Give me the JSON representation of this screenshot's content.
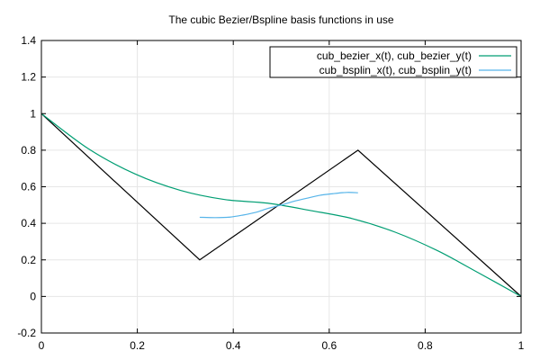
{
  "chart_data": {
    "type": "line",
    "title": "The cubic Bezier/Bspline basis functions in use",
    "xlabel": "",
    "ylabel": "",
    "xlim": [
      0,
      1
    ],
    "ylim": [
      -0.2,
      1.4
    ],
    "x_ticks": [
      {
        "value": 0,
        "label": "0"
      },
      {
        "value": 0.2,
        "label": "0.2"
      },
      {
        "value": 0.4,
        "label": "0.4"
      },
      {
        "value": 0.6,
        "label": "0.6"
      },
      {
        "value": 0.8,
        "label": "0.8"
      },
      {
        "value": 1,
        "label": "1"
      }
    ],
    "y_ticks": [
      {
        "value": -0.2,
        "label": "-0.2"
      },
      {
        "value": 0,
        "label": "0"
      },
      {
        "value": 0.2,
        "label": "0.2"
      },
      {
        "value": 0.4,
        "label": "0.4"
      },
      {
        "value": 0.6,
        "label": "0.6"
      },
      {
        "value": 0.8,
        "label": "0.8"
      },
      {
        "value": 1,
        "label": "1"
      },
      {
        "value": 1.2,
        "label": "1.2"
      },
      {
        "value": 1.4,
        "label": "1.4"
      }
    ],
    "grid": true,
    "legend_position": "top-right",
    "series": [
      {
        "name": "",
        "color": "#000000",
        "x": [
          0,
          0.33,
          0.66,
          1
        ],
        "y": [
          1,
          0.2,
          0.8,
          0
        ]
      },
      {
        "name": "cub_bezier_x(t), cub_bezier_y(t)",
        "color": "#009e73",
        "x": [
          0.0,
          0.099,
          0.196,
          0.29,
          0.382,
          0.472,
          0.561,
          0.649,
          0.737,
          0.826,
          0.912,
          1.0
        ],
        "y": [
          1.0,
          0.806,
          0.669,
          0.58,
          0.53,
          0.51,
          0.47,
          0.425,
          0.352,
          0.25,
          0.128,
          0.0
        ]
      },
      {
        "name": "cub_bsplin_x(t), cub_bsplin_y(t)",
        "color": "#56b4e9",
        "x": [
          0.33,
          0.363,
          0.393,
          0.42,
          0.447,
          0.473,
          0.5,
          0.527,
          0.553,
          0.58,
          0.607,
          0.637,
          0.66
        ],
        "y": [
          0.433,
          0.431,
          0.434,
          0.445,
          0.46,
          0.482,
          0.5,
          0.521,
          0.537,
          0.553,
          0.562,
          0.569,
          0.567
        ]
      }
    ]
  }
}
